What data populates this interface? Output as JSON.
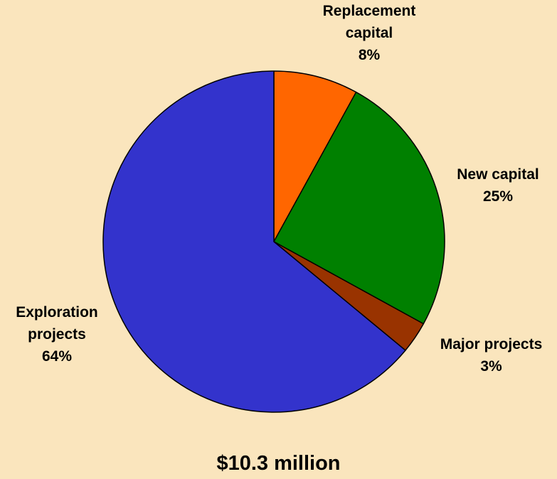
{
  "chart_data": {
    "type": "pie",
    "categories": [
      "Replacement capital",
      "New capital",
      "Major projects",
      "Exploration projects"
    ],
    "values": [
      8,
      25,
      3,
      64
    ],
    "value_labels": [
      "8%",
      "25%",
      "3%",
      "64%"
    ],
    "colors": [
      "#ff6600",
      "#008000",
      "#993300",
      "#3333cc"
    ],
    "title": "$10.3 million"
  }
}
